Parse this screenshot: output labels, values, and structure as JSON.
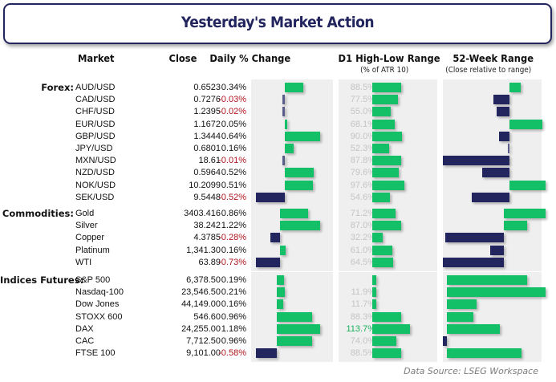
{
  "title": "Yesterday's Market Action",
  "headers": {
    "market": "Market",
    "close": "Close",
    "daily_change": "Daily % Change",
    "d1_range": "D1 High-Low Range",
    "d1_range_sub": "(% of ATR 10)",
    "week52": "52-Week Range",
    "week52_sub": "(Close relative to range)"
  },
  "colors": {
    "positive": "#13c067",
    "negative": "#23255e",
    "negative_text": "#b0141e",
    "title": "#23255e",
    "panel": "#efefef"
  },
  "source": "Data Source: LSEG Workspace",
  "chart_data": {
    "type": "table",
    "title": "Yesterday's Market Action",
    "note": "52-week values are estimated relative positions of close within 52-week range (bar length, relative units, -1 to +1); D1 S&P 500 value not labeled (estimated).",
    "groups": [
      {
        "name": "Forex:",
        "rows": [
          {
            "market": "AUD/USD",
            "close": "0.6523",
            "daily": 0.34,
            "daily_text": "0.34%",
            "d1": 88.5,
            "d1_text": "88.5%",
            "w52": 0.12
          },
          {
            "market": "CAD/USD",
            "close": "0.7276",
            "daily": -0.03,
            "daily_text": "-0.03%",
            "d1": 77.5,
            "d1_text": "77.5%",
            "w52": -0.18
          },
          {
            "market": "CHF/USD",
            "close": "1.2395",
            "daily": -0.02,
            "daily_text": "-0.02%",
            "d1": 55.0,
            "d1_text": "55.0%",
            "w52": -0.15
          },
          {
            "market": "EUR/USD",
            "close": "1.1672",
            "daily": 0.05,
            "daily_text": "0.05%",
            "d1": 68.1,
            "d1_text": "68.1%",
            "w52": 0.36
          },
          {
            "market": "GBP/USD",
            "close": "1.3444",
            "daily": 0.64,
            "daily_text": "0.64%",
            "d1": 90.0,
            "d1_text": "90.0%",
            "w52": -0.12
          },
          {
            "market": "JPY/USD",
            "close": "0.6801",
            "daily": 0.16,
            "daily_text": "0.16%",
            "d1": 52.3,
            "d1_text": "52.3%",
            "w52": -0.01
          },
          {
            "market": "MXN/USD",
            "close": "18.61",
            "daily": -0.01,
            "daily_text": "-0.01%",
            "d1": 87.8,
            "d1_text": "87.8%",
            "w52": -0.75
          },
          {
            "market": "NZD/USD",
            "close": "0.5964",
            "daily": 0.52,
            "daily_text": "0.52%",
            "d1": 79.6,
            "d1_text": "79.6%",
            "w52": -0.31
          },
          {
            "market": "NOK/USD",
            "close": "10.2099",
            "daily": 0.51,
            "daily_text": "0.51%",
            "d1": 97.6,
            "d1_text": "97.6%",
            "w52": 0.4
          },
          {
            "market": "SEK/USD",
            "close": "9.5448",
            "daily": -0.52,
            "daily_text": "-0.52%",
            "d1": 54.6,
            "d1_text": "54.6%",
            "w52": -0.43
          }
        ]
      },
      {
        "name": "Commodities:",
        "rows": [
          {
            "market": "Gold",
            "close": "3403.416",
            "daily": 0.86,
            "daily_text": "0.86%",
            "d1": 71.2,
            "d1_text": "71.2%",
            "w52": 0.68
          },
          {
            "market": "Silver",
            "close": "38.242",
            "daily": 1.22,
            "daily_text": "1.22%",
            "d1": 87.0,
            "d1_text": "87.0%",
            "w52": 0.38
          },
          {
            "market": "Copper",
            "close": "4.3785",
            "daily": -0.28,
            "daily_text": "-0.28%",
            "d1": 32.2,
            "d1_text": "32.2%",
            "w52": -0.96
          },
          {
            "market": "Platinum",
            "close": "1,341.30",
            "daily": 0.16,
            "daily_text": "0.16%",
            "d1": 61.0,
            "d1_text": "61.0%",
            "w52": -0.23
          },
          {
            "market": "WTI",
            "close": "63.89",
            "daily": -0.73,
            "daily_text": "-0.73%",
            "d1": 64.5,
            "d1_text": "64.5%",
            "w52": -1.0
          }
        ]
      },
      {
        "name": "Indices Futures:",
        "rows": [
          {
            "market": "S&P 500",
            "close": "6,378.50",
            "daily": 0.19,
            "daily_text": "0.19%",
            "d1": 12.0,
            "d1_text": "",
            "w52": 0.81
          },
          {
            "market": "Nasdaq-100",
            "close": "23,546.50",
            "daily": 0.21,
            "daily_text": "0.21%",
            "d1": 11.9,
            "d1_text": "11.9%",
            "w52": 1.0
          },
          {
            "market": "Dow Jones",
            "close": "44,149.00",
            "daily": 0.16,
            "daily_text": "0.16%",
            "d1": 11.7,
            "d1_text": "11.7%",
            "w52": 0.3
          },
          {
            "market": "STOXX 600",
            "close": "546.60",
            "daily": 0.96,
            "daily_text": "0.96%",
            "d1": 88.3,
            "d1_text": "88.3%",
            "w52": 0.27
          },
          {
            "market": "DAX",
            "close": "24,255.00",
            "daily": 1.18,
            "daily_text": "1.18%",
            "d1": 113.7,
            "d1_text": "113.7%",
            "w52": 0.54
          },
          {
            "market": "CAC",
            "close": "7,712.50",
            "daily": 0.96,
            "daily_text": "0.96%",
            "d1": 74.0,
            "d1_text": "74.0%",
            "w52": -0.04
          },
          {
            "market": "FTSE 100",
            "close": "9,101.00",
            "daily": -0.58,
            "daily_text": "-0.58%",
            "d1": 88.5,
            "d1_text": "88.5%",
            "w52": 0.76
          }
        ]
      }
    ]
  }
}
